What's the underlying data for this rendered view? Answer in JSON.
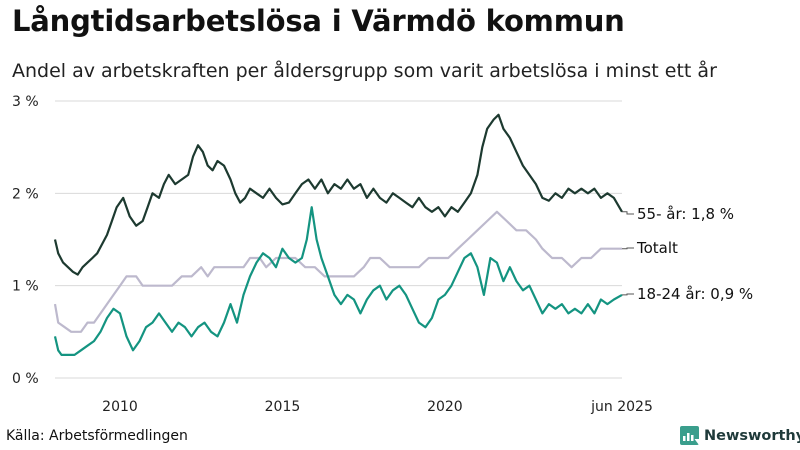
{
  "header": {
    "title": "Långtidsarbetslösa i Värmdö kommun",
    "subtitle": "Andel av arbetskraften per åldersgrupp som varit arbetslösa i minst ett år"
  },
  "footer": {
    "source": "Källa: Arbetsförmedlingen",
    "brand": "Newsworthy"
  },
  "colors": {
    "older": "#1d3a30",
    "total": "#bdb9cd",
    "young": "#149481",
    "grid": "#d9d9d9",
    "brand": "#3a9e8c"
  },
  "chart_data": {
    "type": "line",
    "title": "Långtidsarbetslösa i Värmdö kommun",
    "subtitle": "Andel av arbetskraften per åldersgrupp som varit arbetslösa i minst ett år",
    "xlim": [
      2008.0,
      2025.45
    ],
    "ylim": [
      0,
      3
    ],
    "y_ticks": [
      {
        "value": 0,
        "label": "0 %"
      },
      {
        "value": 1,
        "label": "1 %"
      },
      {
        "value": 2,
        "label": "2 %"
      },
      {
        "value": 3,
        "label": "3 %"
      }
    ],
    "x_ticks": [
      {
        "value": 2010,
        "label": "2010"
      },
      {
        "value": 2015,
        "label": "2015"
      },
      {
        "value": 2020,
        "label": "2020"
      },
      {
        "value": 2025.45,
        "label": "jun 2025"
      }
    ],
    "grid": true,
    "legend": "end-of-line labels",
    "series": [
      {
        "key": "older",
        "name": "55- år",
        "end_label": "55- år: 1,8 %",
        "points": [
          [
            2008.0,
            1.5
          ],
          [
            2008.1,
            1.35
          ],
          [
            2008.25,
            1.25
          ],
          [
            2008.4,
            1.2
          ],
          [
            2008.55,
            1.15
          ],
          [
            2008.7,
            1.12
          ],
          [
            2008.85,
            1.2
          ],
          [
            2009.0,
            1.25
          ],
          [
            2009.15,
            1.3
          ],
          [
            2009.3,
            1.35
          ],
          [
            2009.45,
            1.45
          ],
          [
            2009.6,
            1.55
          ],
          [
            2009.75,
            1.7
          ],
          [
            2009.9,
            1.85
          ],
          [
            2010.1,
            1.95
          ],
          [
            2010.3,
            1.75
          ],
          [
            2010.5,
            1.65
          ],
          [
            2010.7,
            1.7
          ],
          [
            2010.85,
            1.85
          ],
          [
            2011.0,
            2.0
          ],
          [
            2011.2,
            1.95
          ],
          [
            2011.35,
            2.1
          ],
          [
            2011.5,
            2.2
          ],
          [
            2011.7,
            2.1
          ],
          [
            2011.9,
            2.15
          ],
          [
            2012.1,
            2.2
          ],
          [
            2012.25,
            2.4
          ],
          [
            2012.4,
            2.52
          ],
          [
            2012.55,
            2.45
          ],
          [
            2012.7,
            2.3
          ],
          [
            2012.85,
            2.25
          ],
          [
            2013.0,
            2.35
          ],
          [
            2013.2,
            2.3
          ],
          [
            2013.4,
            2.15
          ],
          [
            2013.55,
            2.0
          ],
          [
            2013.7,
            1.9
          ],
          [
            2013.85,
            1.95
          ],
          [
            2014.0,
            2.05
          ],
          [
            2014.2,
            2.0
          ],
          [
            2014.4,
            1.95
          ],
          [
            2014.6,
            2.05
          ],
          [
            2014.8,
            1.95
          ],
          [
            2015.0,
            1.88
          ],
          [
            2015.2,
            1.9
          ],
          [
            2015.4,
            2.0
          ],
          [
            2015.6,
            2.1
          ],
          [
            2015.8,
            2.15
          ],
          [
            2016.0,
            2.05
          ],
          [
            2016.2,
            2.15
          ],
          [
            2016.4,
            2.0
          ],
          [
            2016.6,
            2.1
          ],
          [
            2016.8,
            2.05
          ],
          [
            2017.0,
            2.15
          ],
          [
            2017.2,
            2.05
          ],
          [
            2017.4,
            2.1
          ],
          [
            2017.6,
            1.95
          ],
          [
            2017.8,
            2.05
          ],
          [
            2018.0,
            1.95
          ],
          [
            2018.2,
            1.9
          ],
          [
            2018.4,
            2.0
          ],
          [
            2018.6,
            1.95
          ],
          [
            2018.8,
            1.9
          ],
          [
            2019.0,
            1.85
          ],
          [
            2019.2,
            1.95
          ],
          [
            2019.4,
            1.85
          ],
          [
            2019.6,
            1.8
          ],
          [
            2019.8,
            1.85
          ],
          [
            2020.0,
            1.75
          ],
          [
            2020.2,
            1.85
          ],
          [
            2020.4,
            1.8
          ],
          [
            2020.6,
            1.9
          ],
          [
            2020.8,
            2.0
          ],
          [
            2021.0,
            2.2
          ],
          [
            2021.15,
            2.5
          ],
          [
            2021.3,
            2.7
          ],
          [
            2021.5,
            2.8
          ],
          [
            2021.65,
            2.85
          ],
          [
            2021.8,
            2.7
          ],
          [
            2022.0,
            2.6
          ],
          [
            2022.2,
            2.45
          ],
          [
            2022.4,
            2.3
          ],
          [
            2022.6,
            2.2
          ],
          [
            2022.8,
            2.1
          ],
          [
            2023.0,
            1.95
          ],
          [
            2023.2,
            1.92
          ],
          [
            2023.4,
            2.0
          ],
          [
            2023.6,
            1.95
          ],
          [
            2023.8,
            2.05
          ],
          [
            2024.0,
            2.0
          ],
          [
            2024.2,
            2.05
          ],
          [
            2024.4,
            2.0
          ],
          [
            2024.6,
            2.05
          ],
          [
            2024.8,
            1.95
          ],
          [
            2025.0,
            2.0
          ],
          [
            2025.2,
            1.95
          ],
          [
            2025.45,
            1.8
          ]
        ]
      },
      {
        "key": "total",
        "name": "Totalt",
        "end_label": "Totalt",
        "points": [
          [
            2008.0,
            0.8
          ],
          [
            2008.1,
            0.6
          ],
          [
            2008.3,
            0.55
          ],
          [
            2008.5,
            0.5
          ],
          [
            2008.8,
            0.5
          ],
          [
            2009.0,
            0.6
          ],
          [
            2009.2,
            0.6
          ],
          [
            2009.4,
            0.7
          ],
          [
            2009.6,
            0.8
          ],
          [
            2009.8,
            0.9
          ],
          [
            2010.0,
            1.0
          ],
          [
            2010.2,
            1.1
          ],
          [
            2010.5,
            1.1
          ],
          [
            2010.7,
            1.0
          ],
          [
            2011.0,
            1.0
          ],
          [
            2011.3,
            1.0
          ],
          [
            2011.6,
            1.0
          ],
          [
            2011.9,
            1.1
          ],
          [
            2012.2,
            1.1
          ],
          [
            2012.5,
            1.2
          ],
          [
            2012.7,
            1.1
          ],
          [
            2012.9,
            1.2
          ],
          [
            2013.2,
            1.2
          ],
          [
            2013.5,
            1.2
          ],
          [
            2013.8,
            1.2
          ],
          [
            2014.0,
            1.3
          ],
          [
            2014.3,
            1.3
          ],
          [
            2014.5,
            1.2
          ],
          [
            2014.8,
            1.3
          ],
          [
            2015.1,
            1.3
          ],
          [
            2015.4,
            1.3
          ],
          [
            2015.7,
            1.2
          ],
          [
            2016.0,
            1.2
          ],
          [
            2016.3,
            1.1
          ],
          [
            2016.6,
            1.1
          ],
          [
            2016.9,
            1.1
          ],
          [
            2017.2,
            1.1
          ],
          [
            2017.5,
            1.2
          ],
          [
            2017.7,
            1.3
          ],
          [
            2018.0,
            1.3
          ],
          [
            2018.3,
            1.2
          ],
          [
            2018.6,
            1.2
          ],
          [
            2018.9,
            1.2
          ],
          [
            2019.2,
            1.2
          ],
          [
            2019.5,
            1.3
          ],
          [
            2019.8,
            1.3
          ],
          [
            2020.1,
            1.3
          ],
          [
            2020.4,
            1.4
          ],
          [
            2020.7,
            1.5
          ],
          [
            2021.0,
            1.6
          ],
          [
            2021.3,
            1.7
          ],
          [
            2021.6,
            1.8
          ],
          [
            2021.9,
            1.7
          ],
          [
            2022.2,
            1.6
          ],
          [
            2022.5,
            1.6
          ],
          [
            2022.8,
            1.5
          ],
          [
            2023.0,
            1.4
          ],
          [
            2023.3,
            1.3
          ],
          [
            2023.6,
            1.3
          ],
          [
            2023.9,
            1.2
          ],
          [
            2024.2,
            1.3
          ],
          [
            2024.5,
            1.3
          ],
          [
            2024.8,
            1.4
          ],
          [
            2025.1,
            1.4
          ],
          [
            2025.45,
            1.4
          ]
        ]
      },
      {
        "key": "young",
        "name": "18-24 år",
        "end_label": "18-24 år: 0,9 %",
        "points": [
          [
            2008.0,
            0.45
          ],
          [
            2008.1,
            0.3
          ],
          [
            2008.2,
            0.25
          ],
          [
            2008.4,
            0.25
          ],
          [
            2008.6,
            0.25
          ],
          [
            2008.8,
            0.3
          ],
          [
            2009.0,
            0.35
          ],
          [
            2009.2,
            0.4
          ],
          [
            2009.4,
            0.5
          ],
          [
            2009.6,
            0.65
          ],
          [
            2009.8,
            0.75
          ],
          [
            2010.0,
            0.7
          ],
          [
            2010.2,
            0.45
          ],
          [
            2010.4,
            0.3
          ],
          [
            2010.6,
            0.4
          ],
          [
            2010.8,
            0.55
          ],
          [
            2011.0,
            0.6
          ],
          [
            2011.2,
            0.7
          ],
          [
            2011.4,
            0.6
          ],
          [
            2011.6,
            0.5
          ],
          [
            2011.8,
            0.6
          ],
          [
            2012.0,
            0.55
          ],
          [
            2012.2,
            0.45
          ],
          [
            2012.4,
            0.55
          ],
          [
            2012.6,
            0.6
          ],
          [
            2012.8,
            0.5
          ],
          [
            2013.0,
            0.45
          ],
          [
            2013.2,
            0.6
          ],
          [
            2013.4,
            0.8
          ],
          [
            2013.6,
            0.6
          ],
          [
            2013.8,
            0.9
          ],
          [
            2014.0,
            1.1
          ],
          [
            2014.2,
            1.25
          ],
          [
            2014.4,
            1.35
          ],
          [
            2014.6,
            1.3
          ],
          [
            2014.8,
            1.2
          ],
          [
            2015.0,
            1.4
          ],
          [
            2015.2,
            1.3
          ],
          [
            2015.4,
            1.25
          ],
          [
            2015.6,
            1.3
          ],
          [
            2015.75,
            1.5
          ],
          [
            2015.9,
            1.85
          ],
          [
            2016.05,
            1.5
          ],
          [
            2016.2,
            1.3
          ],
          [
            2016.4,
            1.1
          ],
          [
            2016.6,
            0.9
          ],
          [
            2016.8,
            0.8
          ],
          [
            2017.0,
            0.9
          ],
          [
            2017.2,
            0.85
          ],
          [
            2017.4,
            0.7
          ],
          [
            2017.6,
            0.85
          ],
          [
            2017.8,
            0.95
          ],
          [
            2018.0,
            1.0
          ],
          [
            2018.2,
            0.85
          ],
          [
            2018.4,
            0.95
          ],
          [
            2018.6,
            1.0
          ],
          [
            2018.8,
            0.9
          ],
          [
            2019.0,
            0.75
          ],
          [
            2019.2,
            0.6
          ],
          [
            2019.4,
            0.55
          ],
          [
            2019.6,
            0.65
          ],
          [
            2019.8,
            0.85
          ],
          [
            2020.0,
            0.9
          ],
          [
            2020.2,
            1.0
          ],
          [
            2020.4,
            1.15
          ],
          [
            2020.6,
            1.3
          ],
          [
            2020.8,
            1.35
          ],
          [
            2021.0,
            1.2
          ],
          [
            2021.2,
            0.9
          ],
          [
            2021.4,
            1.3
          ],
          [
            2021.6,
            1.25
          ],
          [
            2021.8,
            1.05
          ],
          [
            2022.0,
            1.2
          ],
          [
            2022.2,
            1.05
          ],
          [
            2022.4,
            0.95
          ],
          [
            2022.6,
            1.0
          ],
          [
            2022.8,
            0.85
          ],
          [
            2023.0,
            0.7
          ],
          [
            2023.2,
            0.8
          ],
          [
            2023.4,
            0.75
          ],
          [
            2023.6,
            0.8
          ],
          [
            2023.8,
            0.7
          ],
          [
            2024.0,
            0.75
          ],
          [
            2024.2,
            0.7
          ],
          [
            2024.4,
            0.8
          ],
          [
            2024.6,
            0.7
          ],
          [
            2024.8,
            0.85
          ],
          [
            2025.0,
            0.8
          ],
          [
            2025.2,
            0.85
          ],
          [
            2025.45,
            0.9
          ]
        ]
      }
    ]
  }
}
